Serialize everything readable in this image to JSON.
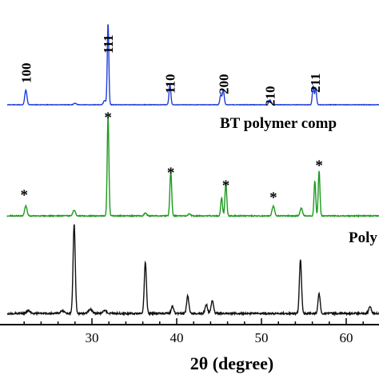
{
  "chart_data": {
    "type": "line",
    "title": "",
    "xlabel": "2θ (degree)",
    "ylabel": "",
    "xlim": [
      20,
      66
    ],
    "x_ticks": [
      30,
      40,
      50,
      60
    ],
    "tick_labels": [
      "30",
      "40",
      "50",
      "60"
    ],
    "series": [
      {
        "name": "",
        "color": "#1f3fd6",
        "baseline": 0,
        "peaks": [
          {
            "x": 22.2,
            "h": 0.18,
            "w": 0.18
          },
          {
            "x": 28.0,
            "h": 0.02,
            "w": 0.2
          },
          {
            "x": 31.5,
            "h": 0.05,
            "w": 0.2
          },
          {
            "x": 31.9,
            "h": 1.0,
            "w": 0.13
          },
          {
            "x": 39.2,
            "h": 0.25,
            "w": 0.15
          },
          {
            "x": 45.2,
            "h": 0.12,
            "w": 0.15
          },
          {
            "x": 45.5,
            "h": 0.18,
            "w": 0.15
          },
          {
            "x": 51.0,
            "h": 0.06,
            "w": 0.2
          },
          {
            "x": 56.1,
            "h": 0.23,
            "w": 0.14
          },
          {
            "x": 56.4,
            "h": 0.2,
            "w": 0.14
          }
        ]
      },
      {
        "name": "BT polymer comp",
        "color": "#1e9a1e",
        "baseline": 0,
        "peaks": [
          {
            "x": 22.2,
            "h": 0.1,
            "w": 0.2
          },
          {
            "x": 27.9,
            "h": 0.06,
            "w": 0.2
          },
          {
            "x": 31.9,
            "h": 1.0,
            "w": 0.14
          },
          {
            "x": 36.3,
            "h": 0.03,
            "w": 0.2
          },
          {
            "x": 39.3,
            "h": 0.45,
            "w": 0.15
          },
          {
            "x": 41.5,
            "h": 0.02,
            "w": 0.2
          },
          {
            "x": 45.3,
            "h": 0.18,
            "w": 0.15
          },
          {
            "x": 45.8,
            "h": 0.33,
            "w": 0.15
          },
          {
            "x": 51.4,
            "h": 0.1,
            "w": 0.2
          },
          {
            "x": 54.7,
            "h": 0.08,
            "w": 0.2
          },
          {
            "x": 56.3,
            "h": 0.35,
            "w": 0.14
          },
          {
            "x": 56.8,
            "h": 0.45,
            "w": 0.14
          }
        ]
      },
      {
        "name": "Poly",
        "color": "#111111",
        "baseline": 0,
        "peaks": [
          {
            "x": 22.5,
            "h": 0.03,
            "w": 0.3
          },
          {
            "x": 26.5,
            "h": 0.03,
            "w": 0.3
          },
          {
            "x": 27.9,
            "h": 1.0,
            "w": 0.18
          },
          {
            "x": 29.8,
            "h": 0.05,
            "w": 0.3
          },
          {
            "x": 31.5,
            "h": 0.03,
            "w": 0.3
          },
          {
            "x": 36.3,
            "h": 0.57,
            "w": 0.18
          },
          {
            "x": 39.5,
            "h": 0.08,
            "w": 0.2
          },
          {
            "x": 41.3,
            "h": 0.2,
            "w": 0.18
          },
          {
            "x": 43.5,
            "h": 0.1,
            "w": 0.2
          },
          {
            "x": 44.2,
            "h": 0.14,
            "w": 0.2
          },
          {
            "x": 54.6,
            "h": 0.6,
            "w": 0.18
          },
          {
            "x": 56.8,
            "h": 0.22,
            "w": 0.18
          },
          {
            "x": 62.8,
            "h": 0.08,
            "w": 0.2
          },
          {
            "x": 64.2,
            "h": 0.1,
            "w": 0.2
          }
        ]
      }
    ],
    "peak_labels": [
      {
        "x": 22.2,
        "text": "100"
      },
      {
        "x": 31.9,
        "text": "111"
      },
      {
        "x": 39.2,
        "text": "110"
      },
      {
        "x": 45.5,
        "text": "200"
      },
      {
        "x": 51.0,
        "text": "210"
      },
      {
        "x": 56.3,
        "text": "211"
      }
    ],
    "star_markers": [
      {
        "x": 22.0,
        "text": "*"
      },
      {
        "x": 31.9,
        "text": "*"
      },
      {
        "x": 39.3,
        "text": "*"
      },
      {
        "x": 45.8,
        "text": "*"
      },
      {
        "x": 51.4,
        "text": "*"
      },
      {
        "x": 56.8,
        "text": "*"
      }
    ],
    "grid": false
  }
}
